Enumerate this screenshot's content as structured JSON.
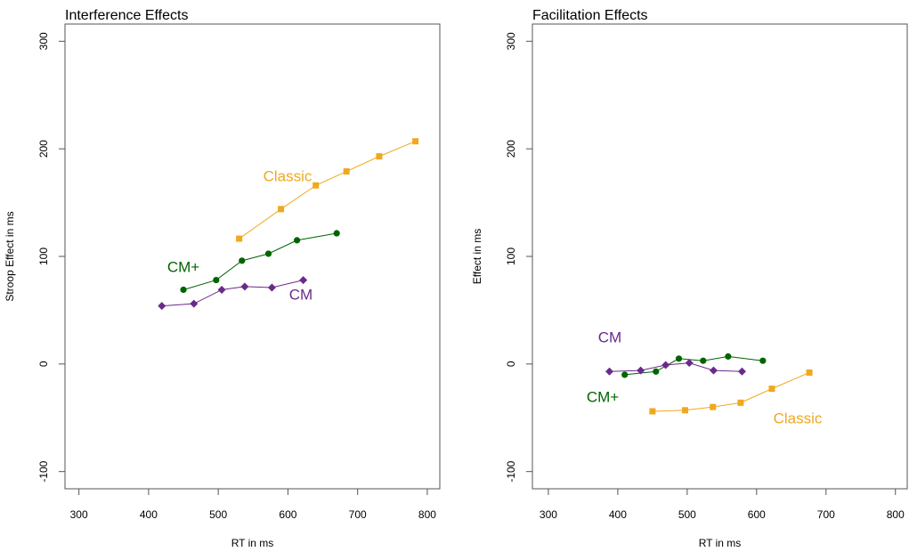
{
  "chart_data": [
    {
      "type": "line",
      "title": "Interference Effects",
      "xlabel": "RT in ms",
      "ylabel": "Stroop Effect in ms",
      "xlim": [
        280,
        818
      ],
      "ylim": [
        -116,
        316
      ],
      "xticks": [
        300,
        400,
        500,
        600,
        700,
        800
      ],
      "yticks": [
        -100,
        0,
        100,
        200,
        300
      ],
      "series": [
        {
          "name": "Classic",
          "color": "#f0a820",
          "marker": "square",
          "x": [
            530,
            590,
            640,
            684,
            731,
            783
          ],
          "values": [
            116.5,
            144,
            166,
            179,
            193,
            207
          ]
        },
        {
          "name": "CM+",
          "color": "#006400",
          "marker": "circle",
          "x": [
            450,
            497,
            534,
            572,
            613,
            670
          ],
          "values": [
            69,
            78,
            96,
            102.5,
            115,
            121.5
          ]
        },
        {
          "name": "CM",
          "color": "#6a2a8a",
          "marker": "diamond",
          "x": [
            419,
            465,
            505,
            538,
            577,
            622
          ],
          "values": [
            54,
            56,
            69,
            72,
            71,
            78
          ]
        }
      ]
    },
    {
      "type": "line",
      "title": "Facilitation Effects",
      "xlabel": "RT in ms",
      "ylabel": "Effect in ms",
      "xlim": [
        277,
        817
      ],
      "ylim": [
        -116,
        316
      ],
      "xticks": [
        300,
        400,
        500,
        600,
        700,
        800
      ],
      "yticks": [
        -100,
        0,
        100,
        200,
        300
      ],
      "series": [
        {
          "name": "Classic",
          "color": "#f0a820",
          "marker": "square",
          "x": [
            450,
            497,
            537,
            577,
            622,
            676
          ],
          "values": [
            -44,
            -43,
            -40,
            -36,
            -23,
            -8
          ]
        },
        {
          "name": "CM+",
          "color": "#006400",
          "marker": "circle",
          "x": [
            410,
            455,
            488,
            523,
            559,
            609
          ],
          "values": [
            -10,
            -7,
            5,
            3,
            7,
            3
          ]
        },
        {
          "name": "CM",
          "color": "#6a2a8a",
          "marker": "diamond",
          "x": [
            388,
            433,
            469,
            503,
            538,
            579
          ],
          "values": [
            -7,
            -6,
            -1,
            1,
            -6,
            -7
          ]
        }
      ]
    }
  ]
}
